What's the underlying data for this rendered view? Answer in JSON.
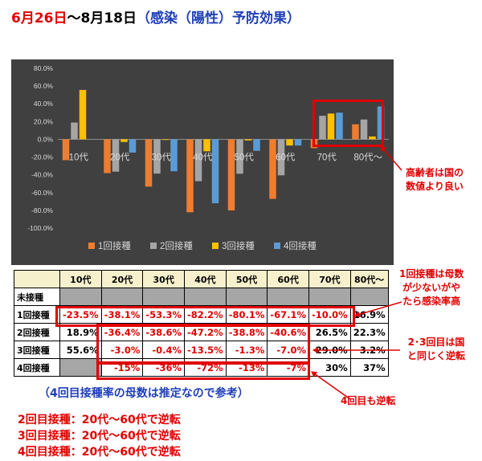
{
  "title": {
    "part1": "6月26日",
    "part2": "～8月18日",
    "part3": "（感染（陽性）予防効果）"
  },
  "chart_data": {
    "type": "bar",
    "categories": [
      "10代",
      "20代",
      "30代",
      "40代",
      "50代",
      "60代",
      "70代",
      "80代～"
    ],
    "series": [
      {
        "name": "1回接種",
        "color": "#ed7d31",
        "values": [
          -23.5,
          -38.1,
          -53.3,
          -82.2,
          -80.1,
          -67.1,
          -10.0,
          16.9
        ]
      },
      {
        "name": "2回接種",
        "color": "#a5a5a5",
        "values": [
          18.9,
          -36.4,
          -38.6,
          -47.2,
          -38.8,
          -40.6,
          26.5,
          22.3
        ]
      },
      {
        "name": "3回接種",
        "color": "#ffc000",
        "values": [
          55.6,
          -3.0,
          -0.4,
          -13.5,
          -1.3,
          -7.0,
          29.0,
          3.2
        ]
      },
      {
        "name": "4回接種",
        "color": "#5b9bd5",
        "values": [
          null,
          -15,
          -36,
          -72,
          -13,
          -7,
          30,
          37
        ]
      }
    ],
    "ylim": [
      -100,
      80
    ],
    "yticks": [
      "80.0%",
      "60.0%",
      "40.0%",
      "20.0%",
      "0.0%",
      "-20.0%",
      "-40.0%",
      "-60.0%",
      "-80.0%",
      "-100.0%"
    ],
    "legend_position": "bottom",
    "background": "#404040",
    "grid": false
  },
  "callouts": {
    "elderly": [
      "高齢者は国の",
      "数値より良い"
    ],
    "first": [
      "1回接種は母数",
      "が少ないがや",
      "たら感染率高"
    ],
    "second_third": [
      "2･3回目は国",
      "と同じく逆転"
    ],
    "fourth": "4回目も逆転"
  },
  "table": {
    "headers": [
      "",
      "10代",
      "20代",
      "30代",
      "40代",
      "50代",
      "60代",
      "70代",
      "80代～"
    ],
    "rows": [
      {
        "label": "未接種",
        "cells": [
          "",
          "",
          "",
          "",
          "",
          "",
          "",
          ""
        ]
      },
      {
        "label": "1回接種",
        "cells": [
          "-23.5%",
          "-38.1%",
          "-53.3%",
          "-82.2%",
          "-80.1%",
          "-67.1%",
          "-10.0%",
          "16.9%"
        ]
      },
      {
        "label": "2回接種",
        "cells": [
          "18.9%",
          "-36.4%",
          "-38.6%",
          "-47.2%",
          "-38.8%",
          "-40.6%",
          "26.5%",
          "22.3%"
        ]
      },
      {
        "label": "3回接種",
        "cells": [
          "55.6%",
          "-3.0%",
          "-0.4%",
          "-13.5%",
          "-1.3%",
          "-7.0%",
          "29.0%",
          "3.2%"
        ]
      },
      {
        "label": "4回接種",
        "cells": [
          "",
          "-15%",
          "-36%",
          "-72%",
          "-13%",
          "-7%",
          "30%",
          "37%"
        ]
      }
    ]
  },
  "note": "（4回目接種率の母数は推定なので参考）",
  "summary": [
    "2回目接種：20代～60代で逆転",
    "3回目接種：20代～60代で逆転",
    "4回目接種：20代～60代で逆転"
  ]
}
